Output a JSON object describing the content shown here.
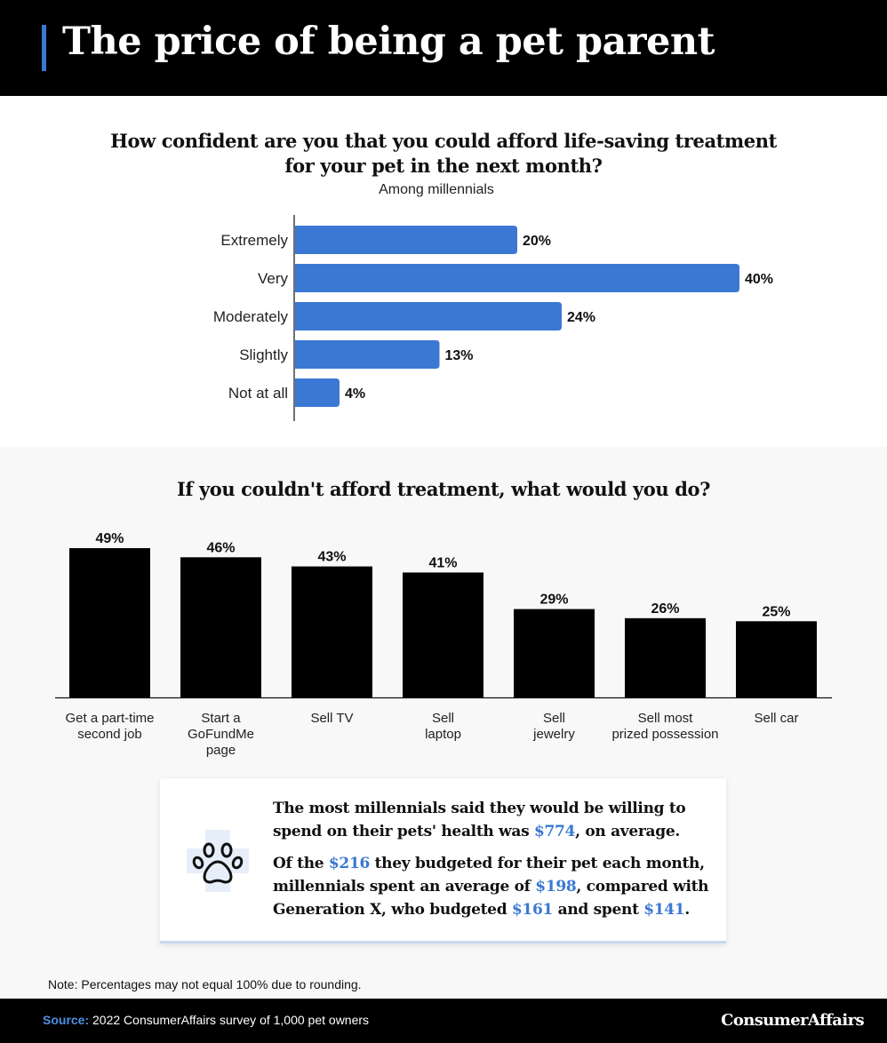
{
  "header": {
    "title": "The price of being a pet parent"
  },
  "colors": {
    "accent": "#3a78d4",
    "bar_primary": "#3a78d4",
    "bar_secondary": "#000000",
    "header_bg": "#000000"
  },
  "chart_data": [
    {
      "type": "bar",
      "orientation": "horizontal",
      "title_line1": "How confident are you that you could afford life-saving treatment",
      "title_line2": "for your pet in the next month?",
      "subtitle": "Among millennials",
      "categories": [
        "Extremely",
        "Very",
        "Moderately",
        "Slightly",
        "Not at all"
      ],
      "values": [
        20,
        40,
        24,
        13,
        4
      ],
      "value_labels": [
        "20%",
        "40%",
        "24%",
        "13%",
        "4%"
      ],
      "unit": "%",
      "xlim": [
        0,
        40
      ],
      "grid": false,
      "color": "#3a78d4"
    },
    {
      "type": "bar",
      "orientation": "vertical",
      "title": "If you couldn't afford treatment, what would you do?",
      "categories": [
        [
          "Get a part-time",
          "second job"
        ],
        [
          "Start a",
          "GoFundMe",
          "page"
        ],
        [
          "Sell TV"
        ],
        [
          "Sell",
          "laptop"
        ],
        [
          "Sell",
          "jewelry"
        ],
        [
          "Sell most",
          "prized possession"
        ],
        [
          "Sell car"
        ]
      ],
      "values": [
        49,
        46,
        43,
        41,
        29,
        26,
        25
      ],
      "value_labels": [
        "49%",
        "46%",
        "43%",
        "41%",
        "29%",
        "26%",
        "25%"
      ],
      "unit": "%",
      "ylim": [
        0,
        49
      ],
      "grid": false,
      "color": "#000000"
    }
  ],
  "callout": {
    "icon": "paw-icon",
    "p1_a": "The most millennials said they would be willing to spend on their pets' health was ",
    "p1_amount": "$774",
    "p1_b": ", on average.",
    "p2_a": "Of the ",
    "p2_amount1": "$216",
    "p2_b": " they budgeted for their pet each month, millennials spent an average of ",
    "p2_amount2": "$198",
    "p2_c": ", compared with Generation X, who budgeted ",
    "p2_amount3": "$161",
    "p2_d": " and spent ",
    "p2_amount4": "$141",
    "p2_e": "."
  },
  "note": "Note: Percentages may not equal 100% due to rounding.",
  "footer": {
    "source_label": "Source:",
    "source_text": " 2022 ConsumerAffairs survey of 1,000 pet owners",
    "logo": "ConsumerAffairs"
  }
}
